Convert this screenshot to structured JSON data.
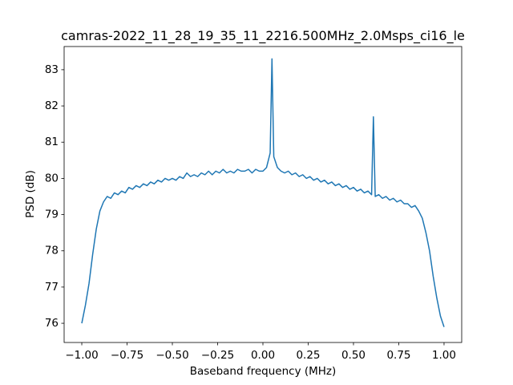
{
  "chart_data": {
    "type": "line",
    "title": "camras-2022_11_28_19_35_11_2216.500MHz_2.0Msps_ci16_le",
    "xlabel": "Baseband frequency (MHz)",
    "ylabel": "PSD (dB)",
    "color": "#1f77b4",
    "xlim": [
      -1.0975,
      1.0975
    ],
    "ylim": [
      75.47,
      83.64
    ],
    "xticks": [
      {
        "value": -1,
        "label": "−1.00"
      },
      {
        "value": -0.75,
        "label": "−0.75"
      },
      {
        "value": -0.5,
        "label": "−0.50"
      },
      {
        "value": -0.25,
        "label": "−0.25"
      },
      {
        "value": 0,
        "label": "0.00"
      },
      {
        "value": 0.25,
        "label": "0.25"
      },
      {
        "value": 0.5,
        "label": "0.50"
      },
      {
        "value": 0.75,
        "label": "0.75"
      },
      {
        "value": 1,
        "label": "1.00"
      }
    ],
    "yticks": [
      76,
      77,
      78,
      79,
      80,
      81,
      82,
      83
    ],
    "x": [
      -1.0,
      -0.98,
      -0.96,
      -0.94,
      -0.92,
      -0.9,
      -0.88,
      -0.86,
      -0.84,
      -0.82,
      -0.8,
      -0.78,
      -0.76,
      -0.74,
      -0.72,
      -0.7,
      -0.68,
      -0.66,
      -0.64,
      -0.62,
      -0.6,
      -0.58,
      -0.56,
      -0.54,
      -0.52,
      -0.5,
      -0.48,
      -0.46,
      -0.44,
      -0.42,
      -0.4,
      -0.38,
      -0.36,
      -0.34,
      -0.32,
      -0.3,
      -0.28,
      -0.26,
      -0.24,
      -0.22,
      -0.2,
      -0.18,
      -0.16,
      -0.14,
      -0.12,
      -0.1,
      -0.08,
      -0.06,
      -0.04,
      -0.02,
      0.0,
      0.02,
      0.04,
      0.05,
      0.06,
      0.08,
      0.1,
      0.12,
      0.14,
      0.16,
      0.18,
      0.2,
      0.22,
      0.24,
      0.26,
      0.28,
      0.3,
      0.32,
      0.34,
      0.36,
      0.38,
      0.4,
      0.42,
      0.44,
      0.46,
      0.48,
      0.5,
      0.52,
      0.54,
      0.56,
      0.58,
      0.6,
      0.61,
      0.62,
      0.64,
      0.66,
      0.68,
      0.7,
      0.72,
      0.74,
      0.76,
      0.78,
      0.8,
      0.82,
      0.84,
      0.86,
      0.88,
      0.9,
      0.92,
      0.94,
      0.96,
      0.98,
      1.0
    ],
    "values": [
      76.0,
      76.5,
      77.1,
      77.9,
      78.6,
      79.1,
      79.35,
      79.5,
      79.45,
      79.6,
      79.55,
      79.65,
      79.6,
      79.75,
      79.7,
      79.8,
      79.75,
      79.85,
      79.8,
      79.9,
      79.85,
      79.95,
      79.9,
      80.0,
      79.95,
      80.0,
      79.95,
      80.05,
      80.0,
      80.15,
      80.05,
      80.1,
      80.05,
      80.15,
      80.1,
      80.2,
      80.1,
      80.2,
      80.15,
      80.25,
      80.15,
      80.2,
      80.15,
      80.25,
      80.2,
      80.2,
      80.25,
      80.15,
      80.25,
      80.2,
      80.2,
      80.3,
      80.7,
      83.3,
      80.6,
      80.3,
      80.2,
      80.15,
      80.2,
      80.1,
      80.15,
      80.05,
      80.1,
      80.0,
      80.05,
      79.95,
      80.0,
      79.9,
      79.95,
      79.85,
      79.9,
      79.8,
      79.85,
      79.75,
      79.8,
      79.7,
      79.75,
      79.65,
      79.7,
      79.6,
      79.65,
      79.55,
      81.7,
      79.5,
      79.55,
      79.45,
      79.5,
      79.4,
      79.45,
      79.35,
      79.4,
      79.3,
      79.3,
      79.2,
      79.25,
      79.1,
      78.9,
      78.5,
      78.0,
      77.3,
      76.7,
      76.2,
      75.9
    ]
  }
}
